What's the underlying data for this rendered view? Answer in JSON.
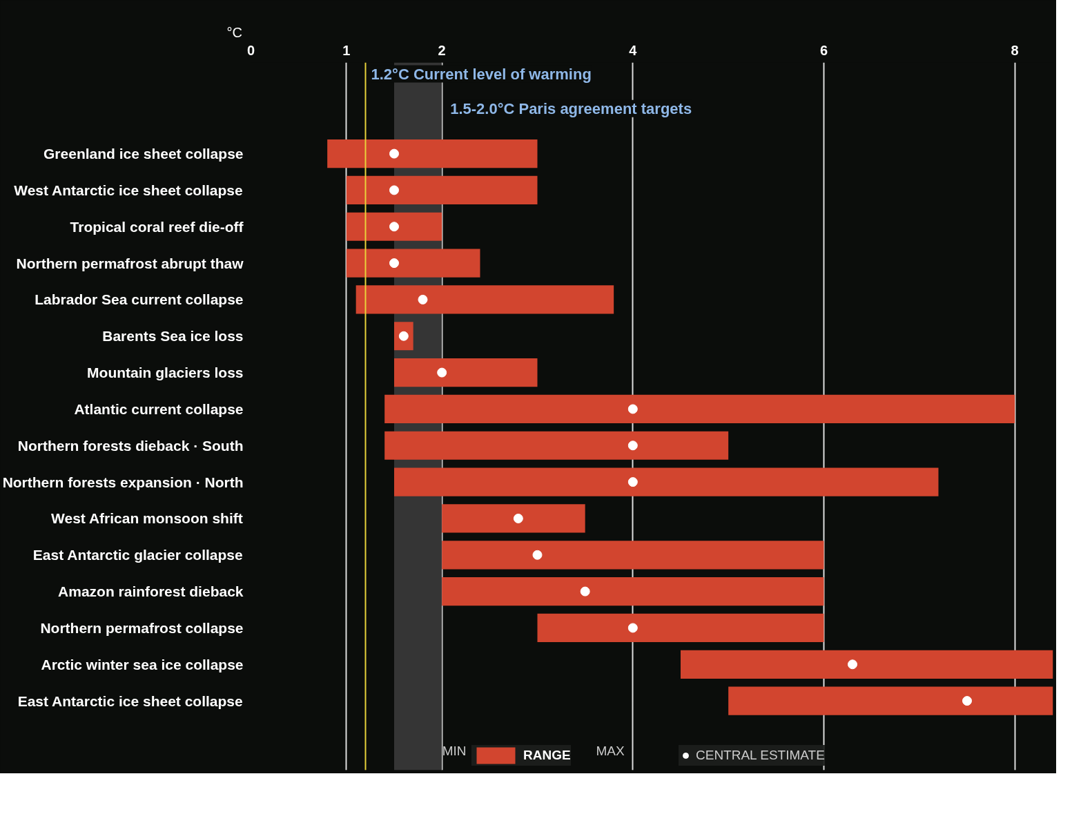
{
  "chart_data": {
    "type": "bar",
    "orientation": "horizontal",
    "xlabel": "°C",
    "categories": [
      "Greenland ice sheet collapse",
      "West Antarctic ice sheet collapse",
      "Tropical coral reef die-off",
      "Northern permafrost abrupt thaw",
      "Labrador Sea current collapse",
      "Barents Sea ice loss",
      "Mountain glaciers loss",
      "Atlantic current collapse",
      "Northern forests dieback · South",
      "Northern forests expansion · North",
      "West African monsoon shift",
      "East Antarctic glacier collapse",
      "Amazon rainforest dieback",
      "Northern permafrost collapse",
      "Arctic winter sea ice collapse",
      "East Antarctic ice sheet collapse"
    ],
    "series": [
      {
        "name": "RANGE",
        "color": "#d2452f",
        "base": [
          0.8,
          1.0,
          1.0,
          1.0,
          1.1,
          1.5,
          1.5,
          1.4,
          1.4,
          1.5,
          2.0,
          2.0,
          2.0,
          3.0,
          4.5,
          5.0
        ],
        "values": [
          2.2,
          2.0,
          1.0,
          1.4,
          2.7,
          0.2,
          1.5,
          6.6,
          3.6,
          5.7,
          1.5,
          4.0,
          4.0,
          3.0,
          3.9,
          3.4
        ]
      },
      {
        "name": "CENTRAL ESTIMATE",
        "type": "scatter",
        "color": "#ffffff",
        "marker": "circle",
        "values": [
          1.5,
          1.5,
          1.5,
          1.5,
          1.8,
          1.6,
          2.0,
          4.0,
          4.0,
          4.0,
          2.8,
          3.0,
          3.5,
          4.0,
          6.3,
          7.5
        ]
      }
    ],
    "xlim": [
      0,
      8.4
    ],
    "xticks": [
      0,
      1,
      2,
      4,
      6,
      8
    ],
    "grid": "x",
    "legend": "bottom",
    "ref_lines": [
      {
        "axis": "x",
        "value": 1.2,
        "label": "1.2°C Current level of warming",
        "color": "#e8d23a"
      }
    ],
    "bands": [
      {
        "axis": "x",
        "from": 1.5,
        "to": 2.0,
        "label": "1.5-2.0°C Paris agreement targets",
        "color": "#3a3a3a"
      }
    ],
    "annotations": [
      "MIN",
      "MAX"
    ]
  }
}
